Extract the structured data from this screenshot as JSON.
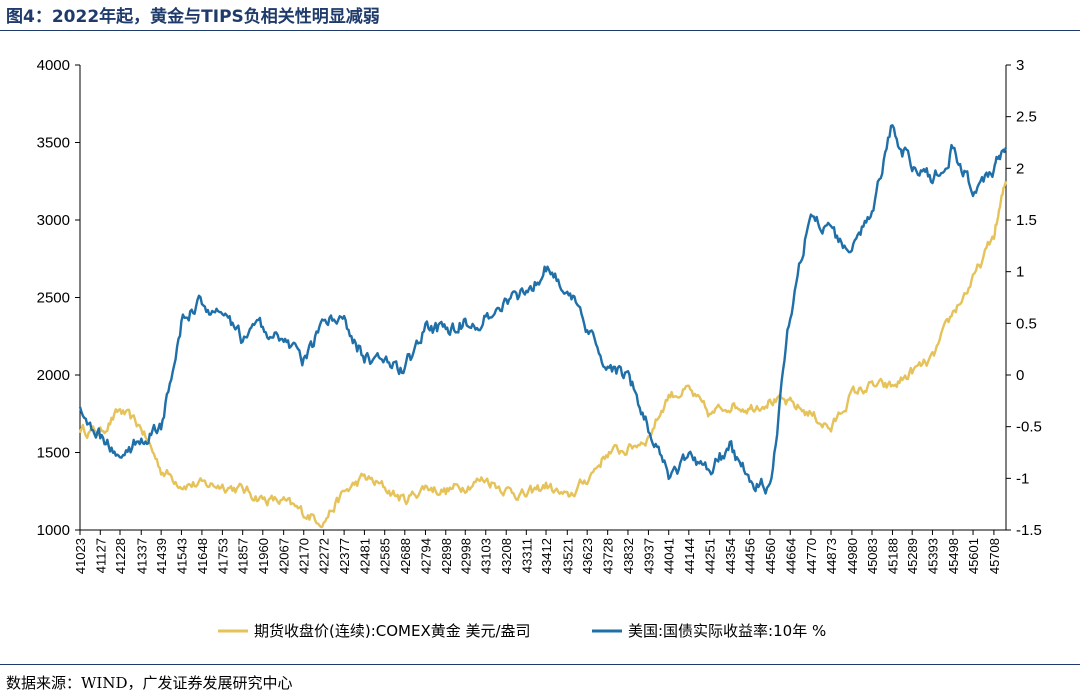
{
  "figure": {
    "title": "图4：2022年起，黄金与TIPS负相关性明显减弱",
    "source": "数据来源：WIND，广发证券发展研究中心"
  },
  "colors": {
    "gold": "#e6c35a",
    "tips": "#1f6fa8",
    "header": "#1f3b6b"
  },
  "chart_data": {
    "type": "line",
    "title": "",
    "x": [
      41023,
      41127,
      41228,
      41337,
      41439,
      41543,
      41648,
      41753,
      41857,
      41960,
      42067,
      42170,
      42272,
      42377,
      42481,
      42585,
      42688,
      42794,
      42898,
      42998,
      43103,
      43208,
      43311,
      43412,
      43521,
      43623,
      43728,
      43832,
      43937,
      44041,
      44144,
      44251,
      44354,
      44456,
      44560,
      44664,
      44770,
      44873,
      44980,
      45083,
      45188,
      45289,
      45393,
      45498,
      45601,
      45708,
      45770
    ],
    "xlim": [
      41023,
      45770
    ],
    "x_tick_labels": [
      "41023",
      "41127",
      "41228",
      "41337",
      "41439",
      "41543",
      "41648",
      "41753",
      "41857",
      "41960",
      "42067",
      "42170",
      "42272",
      "42377",
      "42481",
      "42585",
      "42688",
      "42794",
      "42898",
      "42998",
      "43103",
      "43208",
      "43311",
      "43412",
      "43521",
      "43623",
      "43728",
      "43832",
      "43937",
      "44041",
      "44144",
      "44251",
      "44354",
      "44456",
      "44560",
      "44664",
      "44770",
      "44873",
      "44980",
      "45083",
      "45188",
      "45289",
      "45393",
      "45498",
      "45601",
      "45708"
    ],
    "y_left": {
      "lim": [
        1000,
        4000
      ],
      "ticks": [
        "1000",
        "1500",
        "2000",
        "2500",
        "3000",
        "3500",
        "4000"
      ]
    },
    "y_right": {
      "lim": [
        -1.5,
        3
      ],
      "ticks": [
        "-1.5",
        "-1",
        "-0.5",
        "0",
        "0.5",
        "1",
        "1.5",
        "2",
        "2.5",
        "3"
      ]
    },
    "series": [
      {
        "name": "期货收盘价(连续):COMEX黄金 美元/盎司",
        "axis": "left",
        "values": [
          1650,
          1630,
          1770,
          1660,
          1390,
          1300,
          1290,
          1290,
          1260,
          1200,
          1180,
          1110,
          1060,
          1240,
          1340,
          1270,
          1190,
          1280,
          1250,
          1290,
          1330,
          1260,
          1220,
          1290,
          1200,
          1330,
          1500,
          1520,
          1600,
          1870,
          1900,
          1740,
          1810,
          1790,
          1840,
          1810,
          1750,
          1650,
          1880,
          1930,
          1920,
          2020,
          2100,
          2400,
          2610,
          2900,
          3250
        ]
      },
      {
        "name": "美国:国债实际收益率:10年 %",
        "axis": "right",
        "values": [
          -0.3,
          -0.6,
          -0.8,
          -0.6,
          -0.5,
          0.5,
          0.7,
          0.55,
          0.35,
          0.45,
          0.35,
          0.15,
          0.5,
          0.55,
          0.15,
          0.1,
          0.05,
          0.45,
          0.45,
          0.5,
          0.55,
          0.75,
          0.8,
          1.05,
          0.85,
          0.4,
          0.1,
          0.0,
          -0.5,
          -1.0,
          -0.8,
          -0.9,
          -0.7,
          -1.0,
          -1.1,
          0.6,
          1.6,
          1.35,
          1.2,
          1.6,
          2.4,
          2.0,
          1.9,
          2.2,
          1.8,
          2.0,
          2.2
        ]
      }
    ]
  }
}
